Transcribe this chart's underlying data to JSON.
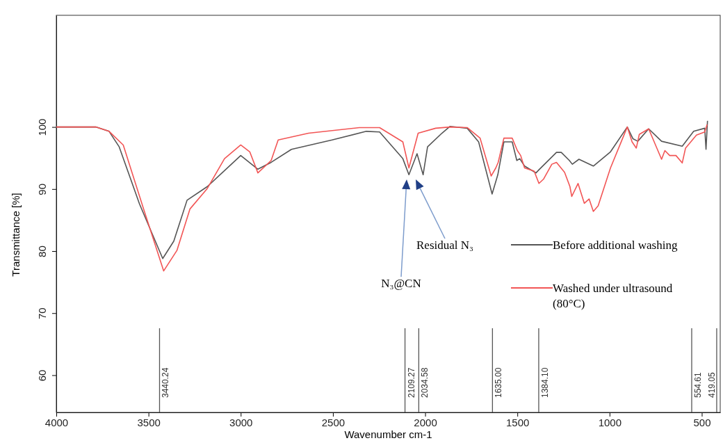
{
  "chart_data": {
    "type": "line",
    "xlabel": "Wavenumber cm-1",
    "ylabel": "Transmittance [%]",
    "xlim": [
      4000,
      400
    ],
    "xticks": [
      4000,
      3500,
      3000,
      2500,
      2000,
      1500,
      1000,
      500
    ],
    "ylim": [
      54,
      118
    ],
    "yticks": [
      60,
      70,
      80,
      90,
      100
    ],
    "grid": false,
    "legend": "right",
    "marker": "none",
    "line_style": "solid",
    "series": [
      {
        "name": "Before additional washing",
        "color": "#555555",
        "x": [
          4000,
          3786,
          3714,
          3659,
          3549,
          3423,
          3363,
          3291,
          3181,
          3000,
          2907,
          2835,
          2725,
          2505,
          2319,
          2247,
          2121,
          2088,
          2044,
          2011,
          1987,
          1909,
          1865,
          1772,
          1710,
          1637,
          1606,
          1573,
          1528,
          1503,
          1487,
          1461,
          1399,
          1383,
          1288,
          1262,
          1218,
          1202,
          1166,
          1088,
          995,
          904,
          873,
          847,
          788,
          718,
          606,
          544,
          484,
          477,
          469
        ],
        "values": [
          100,
          100,
          99.3,
          96.8,
          87.6,
          78.8,
          81.6,
          88.2,
          90.4,
          95.4,
          93.2,
          94.3,
          96.4,
          97.9,
          99.3,
          99.2,
          94.9,
          92.3,
          95.7,
          92.3,
          96.8,
          99,
          100.1,
          99.8,
          97.6,
          89.2,
          92.3,
          97.6,
          97.6,
          94.6,
          94.9,
          93.7,
          92.6,
          93.1,
          95.9,
          95.9,
          94.6,
          94,
          94.8,
          93.7,
          96,
          100,
          98.1,
          97.7,
          99.7,
          97.7,
          96.9,
          99.3,
          99.8,
          96.4,
          101
        ]
      },
      {
        "name": "Washed under ultrasound (80°C)",
        "color": "#f25555",
        "x": [
          4000,
          3786,
          3714,
          3637,
          3527,
          3418,
          3346,
          3275,
          3181,
          3088,
          3000,
          2951,
          2907,
          2835,
          2797,
          2632,
          2357,
          2247,
          2121,
          2088,
          2038,
          1943,
          1865,
          1772,
          1702,
          1642,
          1617,
          1604,
          1573,
          1528,
          1500,
          1482,
          1461,
          1409,
          1383,
          1358,
          1313,
          1288,
          1244,
          1215,
          1205,
          1171,
          1137,
          1111,
          1088,
          1062,
          995,
          933,
          904,
          878,
          855,
          839,
          788,
          718,
          700,
          674,
          640,
          606,
          588,
          529,
          484,
          471
        ],
        "values": [
          100,
          100,
          99.3,
          97.1,
          86.8,
          76.8,
          80.1,
          86.8,
          90.1,
          94.9,
          97.1,
          96,
          92.6,
          94.6,
          97.9,
          99,
          99.9,
          99.9,
          97.6,
          93.4,
          99,
          99.8,
          100,
          99.9,
          98.2,
          92.1,
          93.4,
          94.3,
          98.2,
          98.2,
          96.2,
          95.4,
          93.4,
          92.9,
          90.9,
          91.6,
          94,
          94.3,
          92.7,
          90.4,
          88.8,
          90.9,
          87.7,
          88.4,
          86.4,
          87.3,
          93.4,
          97.9,
          100,
          97.6,
          96.6,
          98.8,
          99.7,
          94.8,
          96.2,
          95.4,
          95.4,
          94.2,
          96.6,
          98.7,
          99.2,
          100.4
        ]
      }
    ],
    "annotations": [
      "N₃@CN",
      "Residual N₃"
    ],
    "ref_lines": [
      {
        "axis": "x",
        "value": 3440.24,
        "label": "3440.24",
        "color": "#555555"
      },
      {
        "axis": "x",
        "value": 2109.27,
        "label": "2109.27",
        "color": "#555555"
      },
      {
        "axis": "x",
        "value": 2034.58,
        "label": "2034.58",
        "color": "#555555"
      },
      {
        "axis": "x",
        "value": 1635.0,
        "label": "1635.00",
        "color": "#555555"
      },
      {
        "axis": "x",
        "value": 1384.1,
        "label": "1384.10",
        "color": "#555555"
      },
      {
        "axis": "x",
        "value": 554.61,
        "label": "554.61",
        "color": "#555555"
      },
      {
        "axis": "x",
        "value": 419.05,
        "label": "419.05",
        "color": "#555555"
      }
    ]
  }
}
